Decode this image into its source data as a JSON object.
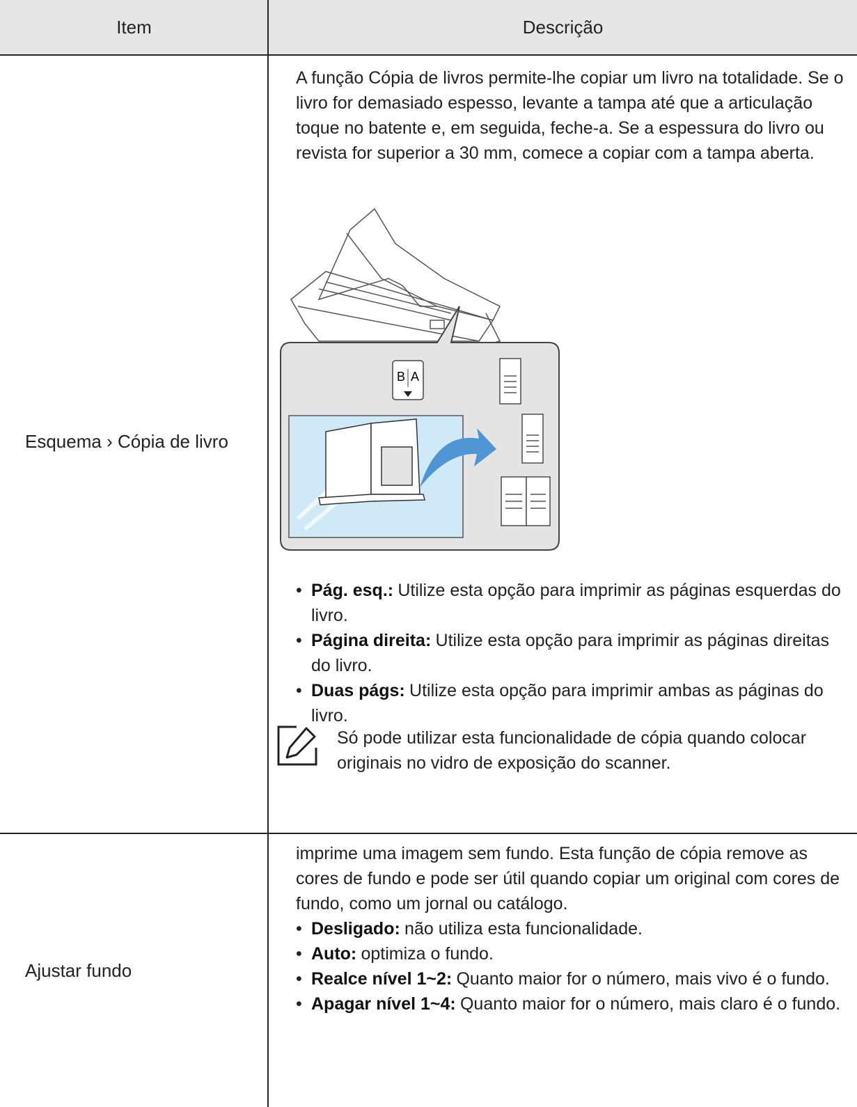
{
  "table": {
    "headers": [
      "Item",
      "Descrição"
    ],
    "rows": [
      {
        "item": "Esquema › Cópia de livro",
        "intro": "A função Cópia de livros permite-lhe copiar um livro na totalidade. Se o livro for demasiado espesso, levante a tampa até que a articulação toque no batente e, em seguida, feche-a. Se a espessura do livro ou revista for superior a 30 mm, comece a copiar com a tampa aberta.",
        "figure_labels": [
          "B",
          "A"
        ],
        "bullets": [
          {
            "term": "Pág. esq.:",
            "text": "Utilize esta opção para imprimir as páginas esquerdas do livro."
          },
          {
            "term": "Página direita:",
            "text": "Utilize esta opção para imprimir as páginas direitas do livro."
          },
          {
            "term": "Duas págs:",
            "text": "Utilize esta opção para imprimir ambas as páginas do livro."
          }
        ],
        "note": "Só pode utilizar esta funcionalidade de cópia quando colocar originais no vidro de exposição do scanner."
      },
      {
        "item": "Ajustar fundo",
        "intro": "imprime uma imagem sem fundo. Esta função de cópia remove as cores de fundo e pode ser útil quando copiar um original com cores de fundo, como um jornal ou catálogo.",
        "bullets": [
          {
            "term": "Desligado:",
            "text": "não utiliza esta funcionalidade."
          },
          {
            "term": "Auto:",
            "text": "optimiza o fundo."
          },
          {
            "term": "Realce nível 1~2:",
            "text": "Quanto maior for o número, mais vivo é o fundo."
          },
          {
            "term": "Apagar nível 1~4:",
            "text": "Quanto maior for o número, mais claro é o fundo."
          }
        ]
      }
    ]
  }
}
